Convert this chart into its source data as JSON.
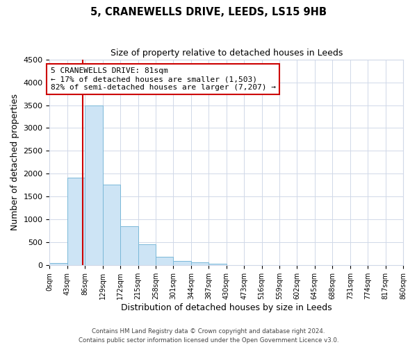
{
  "title": "5, CRANEWELLS DRIVE, LEEDS, LS15 9HB",
  "subtitle": "Size of property relative to detached houses in Leeds",
  "xlabel": "Distribution of detached houses by size in Leeds",
  "ylabel": "Number of detached properties",
  "bin_edges": [
    0,
    43,
    86,
    129,
    172,
    215,
    258,
    301,
    344,
    387,
    430,
    473,
    516,
    559,
    602,
    645,
    688,
    731,
    774,
    817,
    860
  ],
  "bar_heights": [
    50,
    1920,
    3500,
    1770,
    860,
    460,
    180,
    90,
    60,
    30,
    0,
    0,
    0,
    0,
    0,
    0,
    0,
    0,
    0,
    0
  ],
  "bar_color": "#cde4f5",
  "bar_edge_color": "#7ab8d8",
  "property_size": 81,
  "vline_color": "#cc0000",
  "annotation_text": "5 CRANEWELLS DRIVE: 81sqm\n← 17% of detached houses are smaller (1,503)\n82% of semi-detached houses are larger (7,207) →",
  "annotation_box_color": "#ffffff",
  "annotation_box_edge_color": "#cc0000",
  "ylim": [
    0,
    4500
  ],
  "yticks": [
    0,
    500,
    1000,
    1500,
    2000,
    2500,
    3000,
    3500,
    4000,
    4500
  ],
  "tick_labels": [
    "0sqm",
    "43sqm",
    "86sqm",
    "129sqm",
    "172sqm",
    "215sqm",
    "258sqm",
    "301sqm",
    "344sqm",
    "387sqm",
    "430sqm",
    "473sqm",
    "516sqm",
    "559sqm",
    "602sqm",
    "645sqm",
    "688sqm",
    "731sqm",
    "774sqm",
    "817sqm",
    "860sqm"
  ],
  "footer_line1": "Contains HM Land Registry data © Crown copyright and database right 2024.",
  "footer_line2": "Contains public sector information licensed under the Open Government Licence v3.0.",
  "bg_color": "#ffffff",
  "grid_color": "#d0d8e8"
}
